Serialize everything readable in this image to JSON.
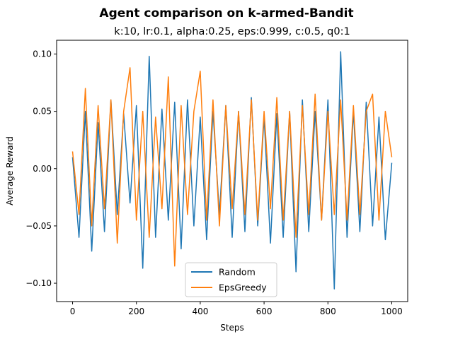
{
  "chart_data": {
    "type": "line",
    "title": "Agent comparison on k-armed-Bandit",
    "subtitle": "k:10, lr:0.1, alpha:0.25, eps:0.999, c:0.5, q0:1",
    "xlabel": "Steps",
    "ylabel": "Average Reward",
    "xlim": [
      -50,
      1050
    ],
    "ylim": [
      -0.116,
      0.112
    ],
    "xticks": [
      0,
      200,
      400,
      600,
      800,
      1000
    ],
    "xtick_labels": [
      "0",
      "200",
      "400",
      "600",
      "800",
      "1000"
    ],
    "yticks": [
      -0.1,
      -0.05,
      0.0,
      0.05,
      0.1
    ],
    "ytick_labels": [
      "−0.10",
      "−0.05",
      "0.00",
      "0.05",
      "0.10"
    ],
    "grid": false,
    "legend": "lower center",
    "series": [
      {
        "name": "Random",
        "color": "#1f77b4",
        "x": [
          0,
          20,
          40,
          60,
          80,
          100,
          120,
          140,
          160,
          180,
          200,
          220,
          240,
          260,
          280,
          300,
          320,
          340,
          360,
          380,
          400,
          420,
          440,
          460,
          480,
          500,
          520,
          540,
          560,
          580,
          600,
          620,
          640,
          660,
          680,
          700,
          720,
          740,
          760,
          780,
          800,
          820,
          840,
          860,
          880,
          900,
          920,
          940,
          960,
          980,
          1000
        ],
        "y": [
          0.01,
          -0.06,
          0.05,
          -0.072,
          0.04,
          -0.055,
          0.06,
          -0.04,
          0.048,
          -0.03,
          0.055,
          -0.087,
          0.098,
          -0.06,
          0.052,
          -0.045,
          0.058,
          -0.07,
          0.06,
          -0.05,
          0.045,
          -0.062,
          0.05,
          -0.04,
          0.055,
          -0.06,
          0.05,
          -0.055,
          0.062,
          -0.05,
          0.045,
          -0.065,
          0.048,
          -0.06,
          0.05,
          -0.09,
          0.06,
          -0.055,
          0.05,
          -0.045,
          0.06,
          -0.105,
          0.102,
          -0.06,
          0.05,
          -0.055,
          0.058,
          -0.05,
          0.045,
          -0.062,
          0.005
        ]
      },
      {
        "name": "EpsGreedy",
        "color": "#ff7f0e",
        "x": [
          0,
          20,
          40,
          60,
          80,
          100,
          120,
          140,
          160,
          180,
          200,
          220,
          240,
          260,
          280,
          300,
          320,
          340,
          360,
          380,
          400,
          420,
          440,
          460,
          480,
          500,
          520,
          540,
          560,
          580,
          600,
          620,
          640,
          660,
          680,
          700,
          720,
          740,
          760,
          780,
          800,
          820,
          840,
          860,
          880,
          900,
          920,
          940,
          960,
          980,
          1000
        ],
        "y": [
          0.015,
          -0.04,
          0.07,
          -0.05,
          0.055,
          -0.035,
          0.06,
          -0.065,
          0.05,
          0.088,
          -0.045,
          0.05,
          -0.06,
          0.045,
          -0.035,
          0.08,
          -0.085,
          0.055,
          -0.04,
          0.05,
          0.085,
          -0.045,
          0.06,
          -0.05,
          0.055,
          -0.035,
          0.05,
          -0.04,
          0.06,
          -0.045,
          0.05,
          -0.035,
          0.062,
          -0.045,
          0.05,
          -0.06,
          0.055,
          -0.04,
          0.065,
          -0.045,
          0.05,
          -0.04,
          0.06,
          -0.045,
          0.055,
          -0.04,
          0.05,
          0.065,
          -0.045,
          0.05,
          0.01
        ]
      }
    ]
  }
}
